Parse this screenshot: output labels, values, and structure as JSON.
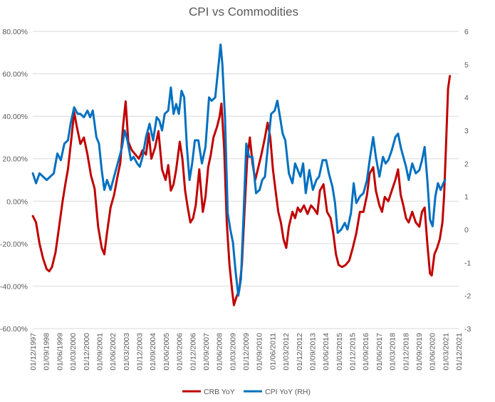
{
  "chart_data": {
    "type": "line",
    "title": "CPI vs Commodities",
    "left_axis": {
      "ylim": [
        -60,
        80
      ],
      "ticks": [
        80,
        60,
        40,
        20,
        0,
        -20,
        -40,
        -60
      ],
      "tick_labels": [
        "80.00%",
        "60.00%",
        "40.00%",
        "20.00%",
        "0.00%",
        "-20.00%",
        "-40.00%",
        "-60.00%"
      ]
    },
    "right_axis": {
      "ylim": [
        -3,
        6
      ],
      "ticks": [
        6,
        5,
        4,
        3,
        2,
        1,
        0,
        -1,
        -2,
        -3
      ],
      "tick_labels": [
        "6",
        "5",
        "4",
        "3",
        "2",
        "1",
        "0",
        "-1",
        "-2",
        "-3"
      ]
    },
    "x_axis": {
      "start": 1997.917,
      "end": 2021.917,
      "tick_labels": [
        "01/12/1997",
        "01/09/1998",
        "01/06/1999",
        "01/03/2000",
        "01/12/2000",
        "01/09/2001",
        "01/06/2002",
        "01/03/2003",
        "01/12/2003",
        "01/09/2004",
        "01/06/2005",
        "01/03/2006",
        "01/12/2006",
        "01/09/2007",
        "01/06/2008",
        "01/03/2009",
        "01/12/2009",
        "01/09/2010",
        "01/06/2011",
        "01/03/2012",
        "01/12/2012",
        "01/09/2013",
        "01/06/2014",
        "01/03/2015",
        "01/12/2015",
        "01/09/2016",
        "01/06/2017",
        "01/03/2018",
        "01/12/2018",
        "01/09/2019",
        "01/06/2020",
        "01/03/2021",
        "01/12/2021"
      ]
    },
    "series": [
      {
        "name": "CRB YoY",
        "color": "#c00000",
        "axis": "left",
        "points": [
          [
            1997.92,
            -7
          ],
          [
            1998.1,
            -10
          ],
          [
            1998.3,
            -20
          ],
          [
            1998.5,
            -27
          ],
          [
            1998.7,
            -32
          ],
          [
            1998.85,
            -33
          ],
          [
            1999.0,
            -31
          ],
          [
            1999.2,
            -24
          ],
          [
            1999.4,
            -12
          ],
          [
            1999.6,
            0
          ],
          [
            1999.75,
            8
          ],
          [
            1999.9,
            15
          ],
          [
            2000.1,
            30
          ],
          [
            2000.25,
            42
          ],
          [
            2000.4,
            35
          ],
          [
            2000.6,
            27
          ],
          [
            2000.8,
            30
          ],
          [
            2001.0,
            22
          ],
          [
            2001.2,
            12
          ],
          [
            2001.4,
            6
          ],
          [
            2001.6,
            -12
          ],
          [
            2001.8,
            -22
          ],
          [
            2001.95,
            -25
          ],
          [
            2002.1,
            -15
          ],
          [
            2002.3,
            -3
          ],
          [
            2002.5,
            3
          ],
          [
            2002.7,
            12
          ],
          [
            2002.85,
            18
          ],
          [
            2003.0,
            35
          ],
          [
            2003.15,
            47
          ],
          [
            2003.3,
            28
          ],
          [
            2003.5,
            24
          ],
          [
            2003.7,
            22
          ],
          [
            2003.9,
            20
          ],
          [
            2004.1,
            24
          ],
          [
            2004.3,
            22
          ],
          [
            2004.45,
            32
          ],
          [
            2004.6,
            20
          ],
          [
            2004.8,
            25
          ],
          [
            2005.0,
            33
          ],
          [
            2005.2,
            15
          ],
          [
            2005.4,
            10
          ],
          [
            2005.55,
            17
          ],
          [
            2005.7,
            5
          ],
          [
            2005.85,
            8
          ],
          [
            2006.0,
            15
          ],
          [
            2006.2,
            28
          ],
          [
            2006.35,
            20
          ],
          [
            2006.5,
            5
          ],
          [
            2006.65,
            -3
          ],
          [
            2006.8,
            -10
          ],
          [
            2006.95,
            -8
          ],
          [
            2007.1,
            -2
          ],
          [
            2007.3,
            15
          ],
          [
            2007.5,
            -5
          ],
          [
            2007.65,
            2
          ],
          [
            2007.8,
            16
          ],
          [
            2007.95,
            22
          ],
          [
            2008.1,
            30
          ],
          [
            2008.3,
            35
          ],
          [
            2008.45,
            40
          ],
          [
            2008.55,
            46
          ],
          [
            2008.7,
            25
          ],
          [
            2008.85,
            -10
          ],
          [
            2009.0,
            -30
          ],
          [
            2009.15,
            -42
          ],
          [
            2009.25,
            -49
          ],
          [
            2009.4,
            -45
          ],
          [
            2009.55,
            -42
          ],
          [
            2009.7,
            -30
          ],
          [
            2009.85,
            -5
          ],
          [
            2010.0,
            20
          ],
          [
            2010.15,
            30
          ],
          [
            2010.3,
            18
          ],
          [
            2010.45,
            10
          ],
          [
            2010.6,
            15
          ],
          [
            2010.8,
            22
          ],
          [
            2011.0,
            30
          ],
          [
            2011.15,
            37
          ],
          [
            2011.3,
            30
          ],
          [
            2011.45,
            15
          ],
          [
            2011.6,
            5
          ],
          [
            2011.75,
            -5
          ],
          [
            2011.9,
            -10
          ],
          [
            2012.05,
            -18
          ],
          [
            2012.2,
            -22
          ],
          [
            2012.35,
            -12
          ],
          [
            2012.55,
            -5
          ],
          [
            2012.7,
            -8
          ],
          [
            2012.85,
            -3
          ],
          [
            2013.0,
            -5
          ],
          [
            2013.2,
            -2
          ],
          [
            2013.4,
            -6
          ],
          [
            2013.6,
            -2
          ],
          [
            2013.8,
            -4
          ],
          [
            2013.95,
            -6
          ],
          [
            2014.1,
            5
          ],
          [
            2014.3,
            8
          ],
          [
            2014.5,
            -5
          ],
          [
            2014.7,
            -8
          ],
          [
            2014.85,
            -15
          ],
          [
            2015.0,
            -25
          ],
          [
            2015.15,
            -30
          ],
          [
            2015.35,
            -31
          ],
          [
            2015.55,
            -30
          ],
          [
            2015.75,
            -28
          ],
          [
            2015.95,
            -22
          ],
          [
            2016.15,
            -15
          ],
          [
            2016.35,
            -5
          ],
          [
            2016.55,
            -5
          ],
          [
            2016.75,
            3
          ],
          [
            2016.9,
            13
          ],
          [
            2017.1,
            16
          ],
          [
            2017.25,
            5
          ],
          [
            2017.45,
            -2
          ],
          [
            2017.6,
            -5
          ],
          [
            2017.75,
            2
          ],
          [
            2017.95,
            0
          ],
          [
            2018.15,
            5
          ],
          [
            2018.35,
            10
          ],
          [
            2018.5,
            15
          ],
          [
            2018.65,
            3
          ],
          [
            2018.8,
            -2
          ],
          [
            2018.95,
            -8
          ],
          [
            2019.1,
            -10
          ],
          [
            2019.3,
            -5
          ],
          [
            2019.5,
            -10
          ],
          [
            2019.7,
            -12
          ],
          [
            2019.85,
            -5
          ],
          [
            2020.0,
            -3
          ],
          [
            2020.15,
            -20
          ],
          [
            2020.3,
            -34
          ],
          [
            2020.4,
            -35
          ],
          [
            2020.55,
            -25
          ],
          [
            2020.7,
            -22
          ],
          [
            2020.85,
            -18
          ],
          [
            2021.0,
            -10
          ],
          [
            2021.1,
            3
          ],
          [
            2021.2,
            25
          ],
          [
            2021.32,
            53
          ],
          [
            2021.42,
            59
          ]
        ]
      },
      {
        "name": "CPI YoY (RH)",
        "color": "#0070c0",
        "axis": "right",
        "points": [
          [
            1997.92,
            1.7
          ],
          [
            1998.1,
            1.4
          ],
          [
            1998.3,
            1.7
          ],
          [
            1998.5,
            1.6
          ],
          [
            1998.7,
            1.5
          ],
          [
            1998.9,
            1.6
          ],
          [
            1999.1,
            1.7
          ],
          [
            1999.3,
            2.3
          ],
          [
            1999.5,
            2.1
          ],
          [
            1999.7,
            2.6
          ],
          [
            1999.9,
            2.7
          ],
          [
            2000.05,
            3.2
          ],
          [
            2000.25,
            3.7
          ],
          [
            2000.45,
            3.5
          ],
          [
            2000.6,
            3.5
          ],
          [
            2000.8,
            3.4
          ],
          [
            2001.0,
            3.6
          ],
          [
            2001.15,
            3.4
          ],
          [
            2001.3,
            3.6
          ],
          [
            2001.5,
            2.8
          ],
          [
            2001.65,
            2.6
          ],
          [
            2001.8,
            1.8
          ],
          [
            2001.95,
            1.2
          ],
          [
            2002.1,
            1.5
          ],
          [
            2002.3,
            1.2
          ],
          [
            2002.45,
            1.5
          ],
          [
            2002.6,
            1.8
          ],
          [
            2002.8,
            2.2
          ],
          [
            2002.95,
            2.5
          ],
          [
            2003.1,
            3.0
          ],
          [
            2003.25,
            2.7
          ],
          [
            2003.45,
            2.1
          ],
          [
            2003.6,
            2.2
          ],
          [
            2003.8,
            2.0
          ],
          [
            2003.95,
            1.9
          ],
          [
            2004.1,
            2.2
          ],
          [
            2004.3,
            2.8
          ],
          [
            2004.5,
            3.2
          ],
          [
            2004.7,
            2.7
          ],
          [
            2004.9,
            3.4
          ],
          [
            2005.05,
            3.3
          ],
          [
            2005.2,
            3.0
          ],
          [
            2005.35,
            3.5
          ],
          [
            2005.55,
            3.6
          ],
          [
            2005.7,
            4.3
          ],
          [
            2005.85,
            3.5
          ],
          [
            2006.0,
            3.8
          ],
          [
            2006.15,
            3.5
          ],
          [
            2006.3,
            4.2
          ],
          [
            2006.45,
            4.0
          ],
          [
            2006.6,
            2.5
          ],
          [
            2006.75,
            1.5
          ],
          [
            2006.9,
            2.0
          ],
          [
            2007.05,
            2.7
          ],
          [
            2007.25,
            2.7
          ],
          [
            2007.45,
            2.0
          ],
          [
            2007.65,
            2.5
          ],
          [
            2007.85,
            4.0
          ],
          [
            2008.0,
            3.9
          ],
          [
            2008.2,
            4.0
          ],
          [
            2008.35,
            4.8
          ],
          [
            2008.5,
            5.6
          ],
          [
            2008.6,
            5.0
          ],
          [
            2008.75,
            3.4
          ],
          [
            2008.9,
            0.5
          ],
          [
            2009.05,
            0.0
          ],
          [
            2009.2,
            -0.4
          ],
          [
            2009.35,
            -1.3
          ],
          [
            2009.5,
            -2.0
          ],
          [
            2009.65,
            -1.5
          ],
          [
            2009.8,
            0.5
          ],
          [
            2009.95,
            2.6
          ],
          [
            2010.1,
            2.2
          ],
          [
            2010.3,
            2.2
          ],
          [
            2010.5,
            1.1
          ],
          [
            2010.7,
            1.2
          ],
          [
            2010.85,
            1.5
          ],
          [
            2011.0,
            1.6
          ],
          [
            2011.2,
            2.7
          ],
          [
            2011.35,
            3.5
          ],
          [
            2011.55,
            3.6
          ],
          [
            2011.7,
            3.9
          ],
          [
            2011.85,
            3.4
          ],
          [
            2012.0,
            2.9
          ],
          [
            2012.15,
            2.7
          ],
          [
            2012.35,
            1.7
          ],
          [
            2012.55,
            1.4
          ],
          [
            2012.7,
            2.0
          ],
          [
            2012.85,
            1.8
          ],
          [
            2013.0,
            1.6
          ],
          [
            2013.15,
            2.0
          ],
          [
            2013.3,
            1.1
          ],
          [
            2013.5,
            1.8
          ],
          [
            2013.7,
            1.2
          ],
          [
            2013.9,
            1.5
          ],
          [
            2014.05,
            1.6
          ],
          [
            2014.25,
            2.1
          ],
          [
            2014.45,
            2.1
          ],
          [
            2014.6,
            1.7
          ],
          [
            2014.8,
            1.3
          ],
          [
            2014.95,
            0.8
          ],
          [
            2015.1,
            -0.1
          ],
          [
            2015.3,
            0.0
          ],
          [
            2015.5,
            0.2
          ],
          [
            2015.65,
            0.0
          ],
          [
            2015.85,
            0.5
          ],
          [
            2016.0,
            1.4
          ],
          [
            2016.15,
            0.8
          ],
          [
            2016.35,
            1.0
          ],
          [
            2016.55,
            1.1
          ],
          [
            2016.75,
            1.5
          ],
          [
            2016.9,
            2.1
          ],
          [
            2017.1,
            2.8
          ],
          [
            2017.25,
            2.2
          ],
          [
            2017.45,
            1.6
          ],
          [
            2017.65,
            2.2
          ],
          [
            2017.8,
            2.0
          ],
          [
            2017.95,
            2.1
          ],
          [
            2018.15,
            2.4
          ],
          [
            2018.35,
            2.8
          ],
          [
            2018.5,
            2.9
          ],
          [
            2018.65,
            2.5
          ],
          [
            2018.8,
            2.2
          ],
          [
            2018.95,
            1.9
          ],
          [
            2019.1,
            1.5
          ],
          [
            2019.3,
            2.0
          ],
          [
            2019.5,
            1.7
          ],
          [
            2019.7,
            1.8
          ],
          [
            2019.85,
            2.1
          ],
          [
            2020.0,
            2.5
          ],
          [
            2020.15,
            1.5
          ],
          [
            2020.3,
            0.3
          ],
          [
            2020.45,
            0.1
          ],
          [
            2020.6,
            1.0
          ],
          [
            2020.75,
            1.4
          ],
          [
            2020.9,
            1.2
          ],
          [
            2021.05,
            1.4
          ],
          [
            2021.15,
            1.5
          ]
        ]
      }
    ],
    "legend": {
      "position": "bottom",
      "entries": [
        "CRB YoY",
        "CPI YoY (RH)"
      ]
    }
  }
}
